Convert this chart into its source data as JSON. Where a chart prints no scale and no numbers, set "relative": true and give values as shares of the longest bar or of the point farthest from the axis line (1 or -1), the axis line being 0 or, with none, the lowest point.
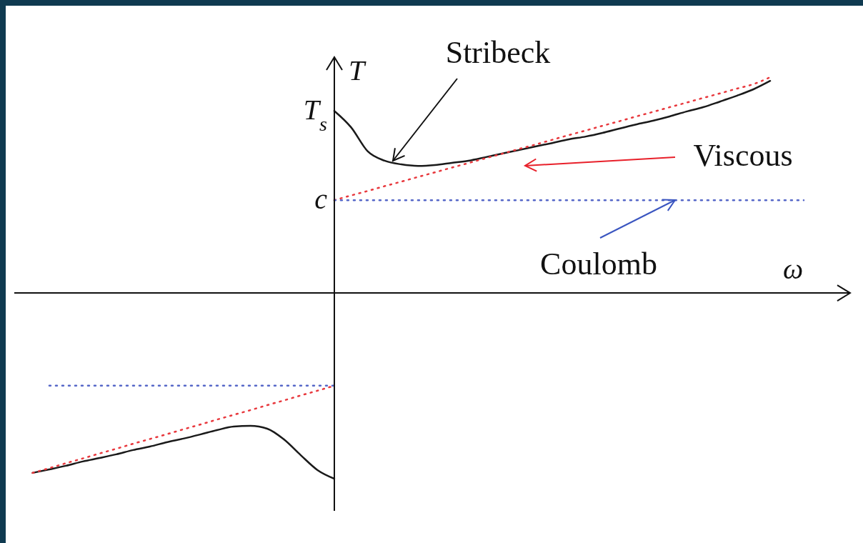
{
  "chart_data": {
    "type": "line",
    "xlabel": "ω",
    "ylabel": "T",
    "marker": "none",
    "categories": [
      null,
      null,
      null,
      null,
      null,
      null,
      null,
      null,
      null,
      null,
      null,
      null,
      null,
      null,
      null,
      null,
      null,
      null,
      null,
      null,
      null,
      null,
      null,
      null,
      null,
      null,
      null,
      null,
      null,
      null,
      null,
      null,
      null,
      null,
      null,
      null,
      null,
      null,
      null,
      null,
      null,
      null,
      null,
      null,
      null,
      null,
      null
    ],
    "relative": true,
    "series": [
      {
        "color": "#1a1a1a",
        "line_style": "solid",
        "values": [
          null,
          null,
          null,
          null,
          null,
          null,
          null,
          null,
          null,
          null,
          null,
          null,
          null,
          null,
          null,
          null,
          null,
          null,
          0.844,
          0.768,
          0.656,
          0.613,
          0.596,
          0.589,
          0.593,
          0.603,
          0.613,
          0.629,
          0.646,
          0.662,
          0.679,
          0.695,
          0.712,
          0.725,
          0.742,
          0.762,
          0.781,
          0.798,
          0.818,
          0.841,
          0.861,
          0.887,
          0.914,
          0.944,
          0.983,
          null,
          null
        ]
      },
      {
        "color": "#1a1a1a",
        "line_style": "solid",
        "values": [
          -0.834,
          -0.818,
          -0.801,
          -0.781,
          -0.765,
          -0.748,
          -0.728,
          -0.712,
          -0.692,
          -0.675,
          -0.656,
          -0.636,
          -0.619,
          -0.616,
          -0.629,
          -0.679,
          -0.752,
          -0.821,
          -0.861,
          null,
          null,
          null,
          null,
          null,
          null,
          null,
          null,
          null,
          null,
          null,
          null,
          null,
          null,
          null,
          null,
          null,
          null,
          null,
          null,
          null,
          null,
          null,
          null,
          null,
          null,
          null,
          null
        ]
      },
      {
        "color": "#e8383d",
        "line_style": "dotted",
        "values": [
          null,
          null,
          null,
          null,
          null,
          null,
          null,
          null,
          null,
          null,
          null,
          null,
          null,
          null,
          null,
          null,
          null,
          null,
          0.43,
          0.452,
          0.473,
          0.495,
          0.516,
          0.538,
          0.559,
          0.581,
          0.602,
          0.624,
          0.645,
          0.667,
          0.688,
          0.71,
          0.732,
          0.753,
          0.775,
          0.796,
          0.818,
          0.839,
          0.861,
          0.882,
          0.904,
          0.925,
          0.947,
          0.968,
          1.0,
          null,
          null
        ]
      },
      {
        "color": "#e8383d",
        "line_style": "dotted",
        "values": [
          -0.834,
          -0.812,
          -0.789,
          -0.767,
          -0.744,
          -0.722,
          -0.699,
          -0.677,
          -0.655,
          -0.632,
          -0.61,
          -0.587,
          -0.565,
          -0.543,
          -0.52,
          -0.498,
          -0.475,
          -0.453,
          -0.43,
          null,
          null,
          null,
          null,
          null,
          null,
          null,
          null,
          null,
          null,
          null,
          null,
          null,
          null,
          null,
          null,
          null,
          null,
          null,
          null,
          null,
          null,
          null,
          null,
          null,
          null,
          null,
          null
        ]
      },
      {
        "color": "#5566c8",
        "line_style": "dotted",
        "values": [
          null,
          null,
          null,
          null,
          null,
          null,
          null,
          null,
          null,
          null,
          null,
          null,
          null,
          null,
          null,
          null,
          null,
          null,
          0.43,
          0.43,
          0.43,
          0.43,
          0.43,
          0.43,
          0.43,
          0.43,
          0.43,
          0.43,
          0.43,
          0.43,
          0.43,
          0.43,
          0.43,
          0.43,
          0.43,
          0.43,
          0.43,
          0.43,
          0.43,
          0.43,
          0.43,
          0.43,
          0.43,
          0.43,
          0.43,
          0.43,
          0.43
        ]
      },
      {
        "color": "#5566c8",
        "line_style": "dotted",
        "values": [
          null,
          -0.43,
          -0.43,
          -0.43,
          -0.43,
          -0.43,
          -0.43,
          -0.43,
          -0.43,
          -0.43,
          -0.43,
          -0.43,
          -0.43,
          -0.43,
          -0.43,
          -0.43,
          -0.43,
          -0.43,
          -0.43,
          null,
          null,
          null,
          null,
          null,
          null,
          null,
          null,
          null,
          null,
          null,
          null,
          null,
          null,
          null,
          null,
          null,
          null,
          null,
          null,
          null,
          null,
          null,
          null,
          null,
          null,
          null,
          null
        ]
      }
    ],
    "annotations": [
      "Stribeck",
      "Viscous",
      "Coulomb",
      "T$_{s}$",
      "c"
    ]
  }
}
